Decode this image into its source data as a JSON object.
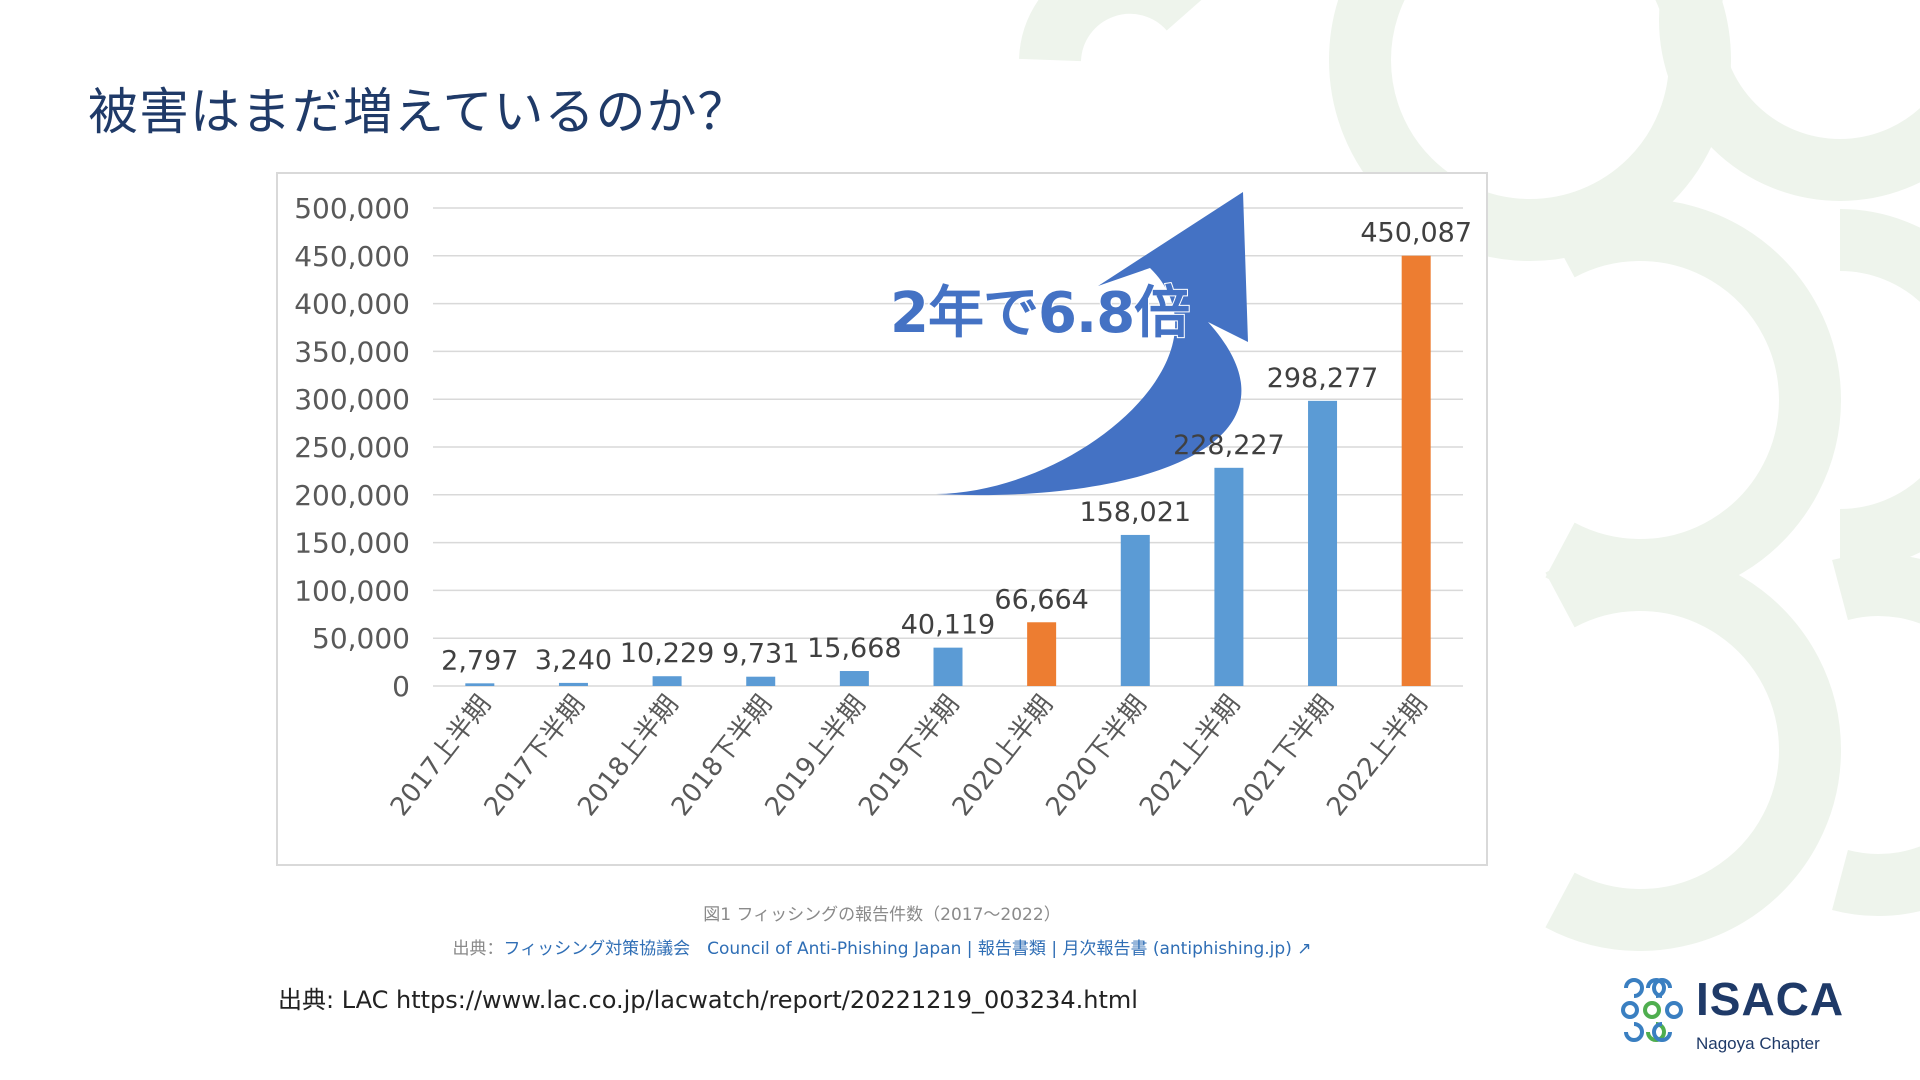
{
  "slide": {
    "title": "被害はまだ増えているのか？",
    "caption": "図1 フィッシングの報告件数（2017〜2022）",
    "figure_source_prefix": "出典：",
    "figure_source_link": "フィッシング対策協議会　Council of Anti-Phishing Japan | 報告書類 | 月次報告書 (antiphishing.jp)",
    "figure_source_arrow": "↗",
    "source_line": "出典: LAC https://www.lac.co.jp/lacwatch/report/20221219_003234.html"
  },
  "logo": {
    "name": "ISACA",
    "chapter": "Nagoya Chapter"
  },
  "colors": {
    "title": "#1f3a68",
    "bar_blue": "#5b9bd5",
    "bar_orange": "#ed7d31",
    "arrow": "#4472c4",
    "deco_green": "#eef4ec"
  },
  "chart_data": {
    "type": "bar",
    "categories": [
      "2017上半期",
      "2017下半期",
      "2018上半期",
      "2018下半期",
      "2019上半期",
      "2019下半期",
      "2020上半期",
      "2020下半期",
      "2021上半期",
      "2021下半期",
      "2022上半期"
    ],
    "values": [
      2797,
      3240,
      10229,
      9731,
      15668,
      40119,
      66664,
      158021,
      228227,
      298277,
      450087
    ],
    "value_labels": [
      "2,797",
      "3,240",
      "10,229",
      "9,731",
      "15,668",
      "40,119",
      "66,664",
      "158,021",
      "228,227",
      "298,277",
      "450,087"
    ],
    "highlighted": [
      6,
      10
    ],
    "ylim": [
      0,
      500000
    ],
    "yticks": [
      "0",
      "50,000",
      "100,000",
      "150,000",
      "200,000",
      "250,000",
      "300,000",
      "350,000",
      "400,000",
      "450,000",
      "500,000"
    ],
    "annotation": "2年で6.8倍",
    "grid": true
  }
}
